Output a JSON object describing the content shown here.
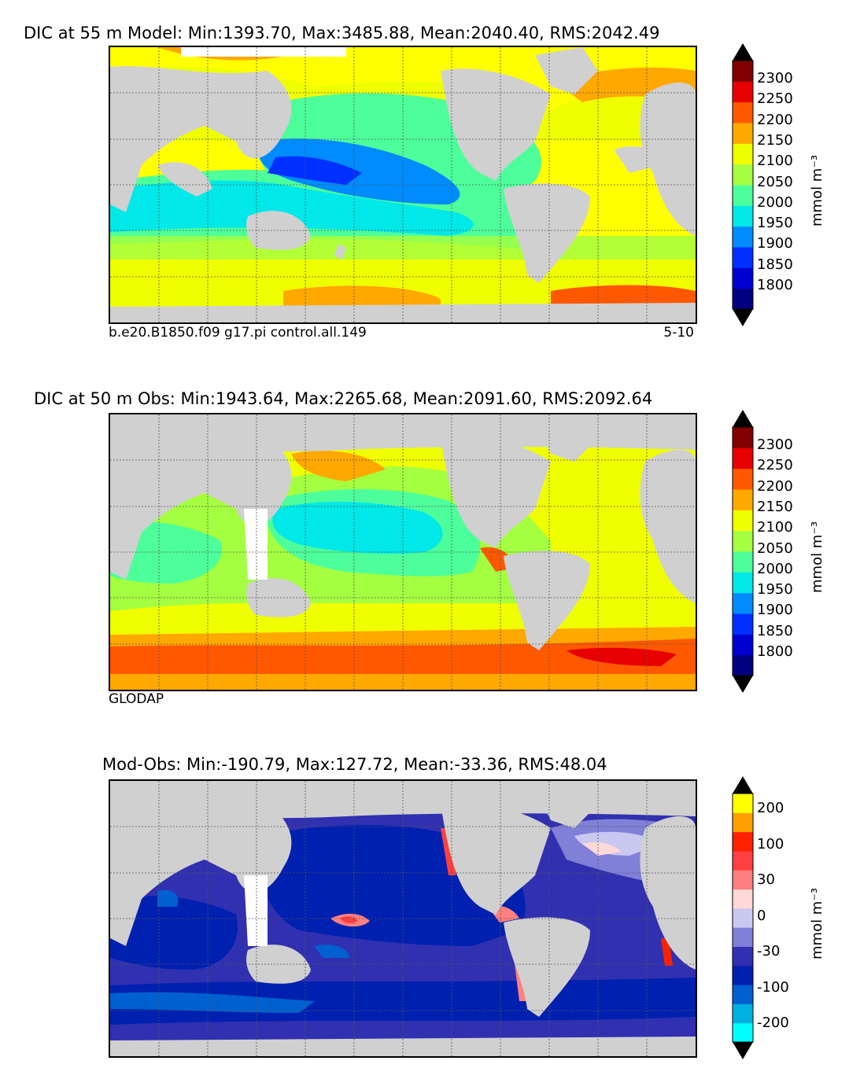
{
  "panels": [
    {
      "title": "DIC at 55 m Model: Min:1393.70, Max:3485.88, Mean:2040.40, RMS:2042.49",
      "subtitle_left": "b.e20.B1850.f09 g17.pi control.all.149",
      "subtitle_right": "5-10"
    },
    {
      "title": "DIC at 50 m Obs: Min:1943.64, Max:2265.68, Mean:2091.60, RMS:2092.64",
      "subtitle_left": "GLODAP",
      "subtitle_right": ""
    },
    {
      "title": "Mod-Obs: Min:-190.79, Max:127.72, Mean:-33.36, RMS:48.04",
      "subtitle_left": "",
      "subtitle_right": ""
    }
  ],
  "colorbars": [
    {
      "unit": "mmol m⁻³",
      "ticks": [
        "2300",
        "2250",
        "2200",
        "2150",
        "2100",
        "2050",
        "2000",
        "1950",
        "1900",
        "1850",
        "1800"
      ],
      "colors": [
        "#000080",
        "#0000d0",
        "#0030ff",
        "#008cff",
        "#00e8e8",
        "#4dff9a",
        "#a4ff40",
        "#f0ff00",
        "#ffa800",
        "#ff5800",
        "#e80000",
        "#800000"
      ]
    },
    {
      "unit": "mmol m⁻³",
      "ticks": [
        "2300",
        "2250",
        "2200",
        "2150",
        "2100",
        "2050",
        "2000",
        "1950",
        "1900",
        "1850",
        "1800"
      ],
      "colors": [
        "#000080",
        "#0000d0",
        "#0030ff",
        "#008cff",
        "#00e8e8",
        "#4dff9a",
        "#a4ff40",
        "#f0ff00",
        "#ffa800",
        "#ff5800",
        "#e80000",
        "#800000"
      ]
    },
    {
      "unit": "mmol m⁻³",
      "ticks": [
        "200",
        "100",
        "30",
        "0",
        "-30",
        "-100",
        "-200"
      ],
      "colors": [
        "#00ffff",
        "#00b0e0",
        "#0060d0",
        "#0020b0",
        "#3030b0",
        "#8080d8",
        "#c8c8f0",
        "#ffd8d8",
        "#ff8080",
        "#ff4040",
        "#ff2000",
        "#ffa000",
        "#ffff00"
      ]
    }
  ]
}
